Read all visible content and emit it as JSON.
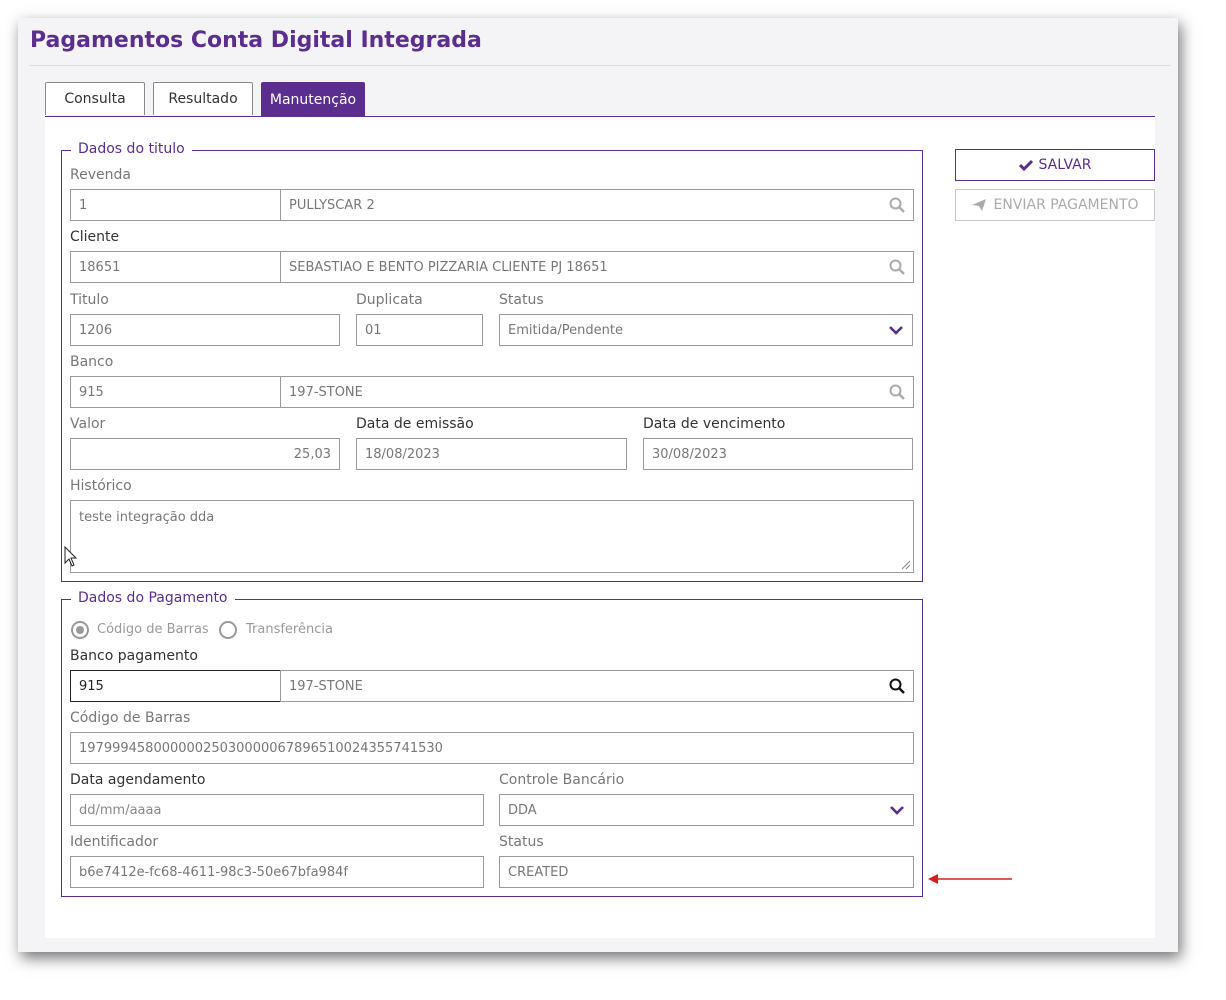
{
  "page": {
    "title": "Pagamentos Conta Digital Integrada"
  },
  "tabs": [
    {
      "label": "Consulta"
    },
    {
      "label": "Resultado"
    },
    {
      "label": "Manutenção"
    }
  ],
  "actions": {
    "save_label": "SALVAR",
    "send_label": "ENVIAR PAGAMENTO"
  },
  "titulo": {
    "legend": "Dados do titulo",
    "revenda": {
      "label": "Revenda",
      "code": "1",
      "name": "PULLYSCAR 2"
    },
    "cliente": {
      "label": "Cliente",
      "code": "18651",
      "name": "SEBASTIAO E BENTO PIZZARIA CLIENTE PJ 18651"
    },
    "titulo": {
      "label": "Titulo",
      "value": "1206"
    },
    "duplicata": {
      "label": "Duplicata",
      "value": "01"
    },
    "status": {
      "label": "Status",
      "value": "Emitida/Pendente"
    },
    "banco": {
      "label": "Banco",
      "code": "915",
      "name": "197-STONE"
    },
    "valor": {
      "label": "Valor",
      "value": "25,03"
    },
    "data_emissao": {
      "label": "Data de emissão",
      "value": "18/08/2023"
    },
    "data_vencimento": {
      "label": "Data de vencimento",
      "value": "30/08/2023"
    },
    "historico": {
      "label": "Histórico",
      "value": "teste integração dda"
    }
  },
  "pagamento": {
    "legend": "Dados do Pagamento",
    "tipo_options": [
      {
        "label": "Código de Barras",
        "selected": true
      },
      {
        "label": "Transferência",
        "selected": false
      }
    ],
    "banco_pagamento": {
      "label": "Banco pagamento",
      "code": "915",
      "name": "197-STONE"
    },
    "codigo_barras": {
      "label": "Código de Barras",
      "value": "19799945800000025030000067896510024355741530"
    },
    "data_agendamento": {
      "label": "Data agendamento",
      "placeholder": "dd/mm/aaaa"
    },
    "controle_bancario": {
      "label": "Controle Bancário",
      "value": "DDA"
    },
    "identificador": {
      "label": "Identificador",
      "value": "b6e7412e-fc68-4611-98c3-50e67bfa984f"
    },
    "status": {
      "label": "Status",
      "value": "CREATED"
    }
  },
  "colors": {
    "accent": "#5b2d8e",
    "annotation_arrow": "#d62020"
  },
  "icons": [
    "search-icon",
    "chevron-down-icon",
    "check-icon",
    "paper-plane-icon",
    "mouse-cursor-icon",
    "arrow-left-icon"
  ]
}
